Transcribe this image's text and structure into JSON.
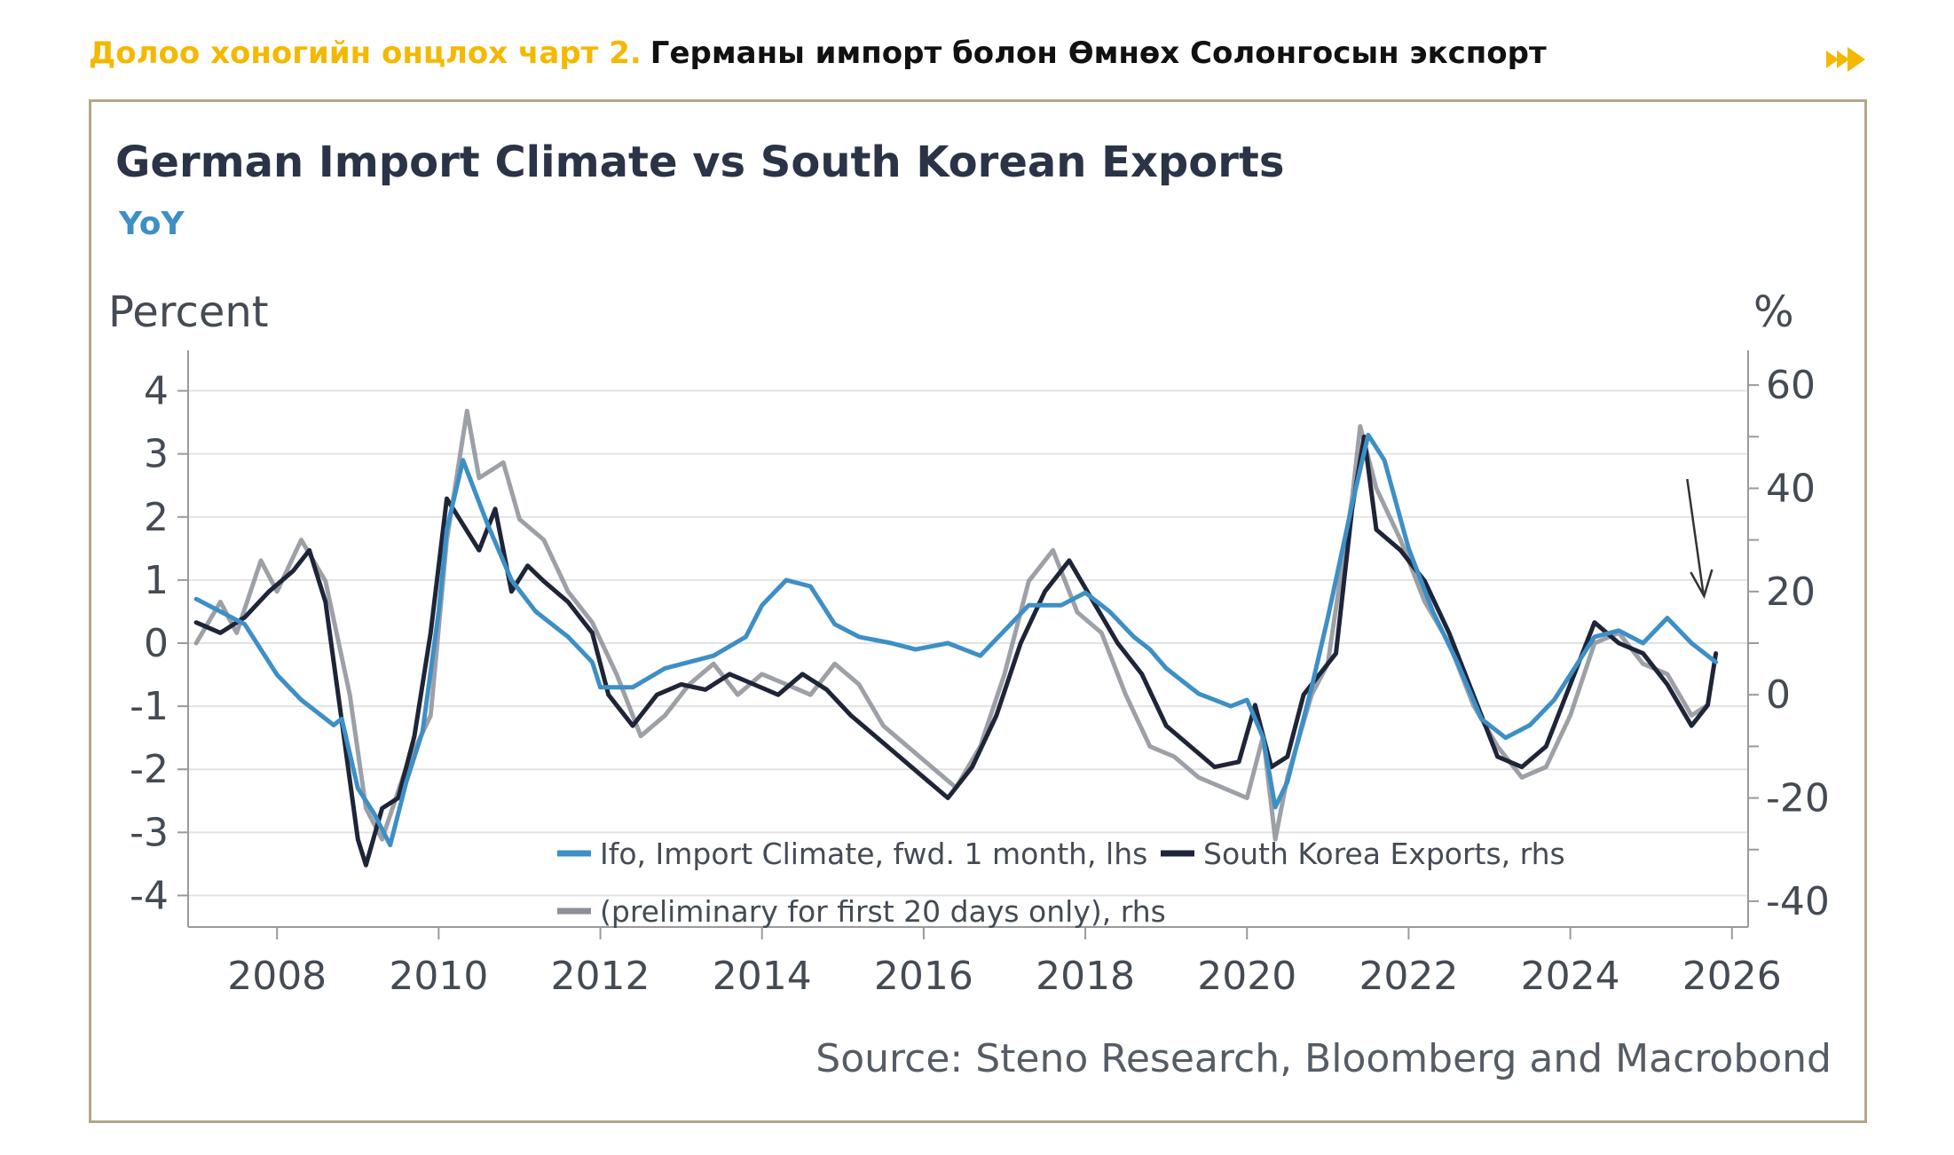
{
  "header": {
    "label": "Долоо хоногийн онцлох чарт 2.",
    "title": "Германы импорт болон Өмнөх Солонгосын экспорт"
  },
  "colors": {
    "header_label": "#f5b800",
    "ifo": "#3d8fc6",
    "korea": "#1e2538",
    "preliminary": "#8c8f97",
    "frame": "#b3a78a"
  },
  "chart_data": {
    "type": "line",
    "title": "German Import Climate vs South Korean Exports",
    "subtitle": "YoY",
    "ylabel_left": "Percent",
    "ylabel_right": "%",
    "ylim_left": [
      -4.5,
      4.5
    ],
    "ylim_right": [
      -45,
      65
    ],
    "xlim": [
      2006.9,
      2026.2
    ],
    "yticks_left": [
      4,
      3,
      2,
      1,
      0,
      -1,
      -2,
      -3,
      -4
    ],
    "yticks_left_labels": [
      "4",
      "3",
      "2",
      "1",
      "0",
      "-1",
      "-2",
      "-3",
      "-4"
    ],
    "yticks_right": [
      60,
      40,
      20,
      0,
      -20,
      -40
    ],
    "yticks_right_labels": [
      "60",
      "40",
      "20",
      "0",
      "-20",
      "-40"
    ],
    "xticks": [
      2008,
      2010,
      2012,
      2014,
      2016,
      2018,
      2020,
      2022,
      2024,
      2026
    ],
    "xticks_labels": [
      "2008",
      "2010",
      "2012",
      "2014",
      "2016",
      "2018",
      "2020",
      "2022",
      "2024",
      "2026"
    ],
    "source": "Source: Steno Research, Bloomberg and Macrobond",
    "legend": [
      "Ifo, Import Climate, fwd. 1 month, lhs",
      "South Korea Exports, rhs",
      "(preliminary for first 20 days only), rhs"
    ],
    "series": [
      {
        "name": "Ifo, Import Climate, fwd. 1 month, lhs",
        "axis": "left",
        "x": [
          2007.0,
          2007.3,
          2007.6,
          2008.0,
          2008.3,
          2008.7,
          2008.8,
          2009.0,
          2009.2,
          2009.4,
          2009.6,
          2009.8,
          2010.0,
          2010.1,
          2010.3,
          2010.6,
          2010.9,
          2011.2,
          2011.6,
          2011.9,
          2012.0,
          2012.4,
          2012.8,
          2013.1,
          2013.4,
          2013.8,
          2014.0,
          2014.3,
          2014.6,
          2014.9,
          2015.2,
          2015.6,
          2015.9,
          2016.3,
          2016.7,
          2017.0,
          2017.3,
          2017.7,
          2018.0,
          2018.3,
          2018.6,
          2018.8,
          2019.0,
          2019.4,
          2019.8,
          2020.0,
          2020.2,
          2020.35,
          2020.5,
          2020.8,
          2021.0,
          2021.3,
          2021.5,
          2021.7,
          2022.0,
          2022.3,
          2022.6,
          2022.9,
          2023.2,
          2023.5,
          2023.8,
          2024.0,
          2024.3,
          2024.6,
          2024.9,
          2025.2,
          2025.5,
          2025.8
        ],
        "values": [
          0.7,
          0.5,
          0.3,
          -0.5,
          -0.9,
          -1.3,
          -1.2,
          -2.3,
          -2.7,
          -3.2,
          -2.2,
          -1.4,
          0.5,
          1.8,
          2.9,
          1.9,
          1.0,
          0.5,
          0.1,
          -0.3,
          -0.7,
          -0.7,
          -0.4,
          -0.3,
          -0.2,
          0.1,
          0.6,
          1.0,
          0.9,
          0.3,
          0.1,
          0.0,
          -0.1,
          0.0,
          -0.2,
          0.2,
          0.6,
          0.6,
          0.8,
          0.5,
          0.1,
          -0.1,
          -0.4,
          -0.8,
          -1.0,
          -0.9,
          -1.5,
          -2.6,
          -2.2,
          -0.7,
          0.4,
          2.2,
          3.3,
          2.9,
          1.5,
          0.5,
          -0.3,
          -1.2,
          -1.5,
          -1.3,
          -0.9,
          -0.5,
          0.1,
          0.2,
          0.0,
          0.4,
          0.0,
          -0.3
        ]
      },
      {
        "name": "South Korea Exports, rhs",
        "axis": "right",
        "x": [
          2007.0,
          2007.3,
          2007.6,
          2007.9,
          2008.2,
          2008.4,
          2008.6,
          2008.8,
          2009.0,
          2009.1,
          2009.3,
          2009.5,
          2009.7,
          2009.9,
          2010.1,
          2010.3,
          2010.5,
          2010.7,
          2010.9,
          2011.1,
          2011.3,
          2011.6,
          2011.9,
          2012.1,
          2012.4,
          2012.7,
          2013.0,
          2013.3,
          2013.6,
          2013.9,
          2014.2,
          2014.5,
          2014.8,
          2015.1,
          2015.4,
          2015.7,
          2016.0,
          2016.3,
          2016.6,
          2016.9,
          2017.2,
          2017.5,
          2017.8,
          2018.1,
          2018.4,
          2018.7,
          2019.0,
          2019.3,
          2019.6,
          2019.9,
          2020.1,
          2020.3,
          2020.5,
          2020.7,
          2020.9,
          2021.1,
          2021.3,
          2021.45,
          2021.6,
          2021.9,
          2022.2,
          2022.5,
          2022.8,
          2023.1,
          2023.4,
          2023.7,
          2024.0,
          2024.3,
          2024.6,
          2024.9,
          2025.2,
          2025.5,
          2025.7,
          2025.8
        ],
        "values": [
          14,
          12,
          15,
          20,
          24,
          28,
          18,
          -5,
          -28,
          -33,
          -22,
          -20,
          -8,
          12,
          38,
          33,
          28,
          36,
          20,
          25,
          22,
          18,
          12,
          0,
          -6,
          0,
          2,
          1,
          4,
          2,
          0,
          4,
          1,
          -4,
          -8,
          -12,
          -16,
          -20,
          -14,
          -4,
          10,
          20,
          26,
          18,
          10,
          4,
          -6,
          -10,
          -14,
          -13,
          -2,
          -14,
          -12,
          0,
          4,
          8,
          36,
          50,
          32,
          28,
          22,
          12,
          0,
          -12,
          -14,
          -10,
          2,
          14,
          10,
          8,
          2,
          -6,
          -2,
          8
        ]
      },
      {
        "name": "(preliminary for first 20 days only), rhs",
        "axis": "right",
        "x": [
          2007.0,
          2007.3,
          2007.5,
          2007.8,
          2008.0,
          2008.3,
          2008.6,
          2008.9,
          2009.1,
          2009.3,
          2009.6,
          2009.9,
          2010.1,
          2010.35,
          2010.5,
          2010.8,
          2011.0,
          2011.3,
          2011.6,
          2011.9,
          2012.2,
          2012.5,
          2012.8,
          2013.1,
          2013.4,
          2013.7,
          2014.0,
          2014.3,
          2014.6,
          2014.9,
          2015.2,
          2015.5,
          2015.8,
          2016.1,
          2016.4,
          2016.7,
          2017.0,
          2017.3,
          2017.6,
          2017.9,
          2018.2,
          2018.5,
          2018.8,
          2019.1,
          2019.4,
          2019.7,
          2020.0,
          2020.2,
          2020.35,
          2020.5,
          2020.8,
          2021.0,
          2021.3,
          2021.4,
          2021.6,
          2021.9,
          2022.2,
          2022.5,
          2022.8,
          2023.1,
          2023.4,
          2023.7,
          2024.0,
          2024.3,
          2024.6,
          2024.9,
          2025.2,
          2025.5,
          2025.7
        ],
        "values": [
          10,
          18,
          12,
          26,
          20,
          30,
          22,
          0,
          -22,
          -28,
          -14,
          -4,
          30,
          55,
          42,
          45,
          34,
          30,
          20,
          14,
          4,
          -8,
          -4,
          2,
          6,
          0,
          4,
          2,
          0,
          6,
          2,
          -6,
          -10,
          -14,
          -18,
          -10,
          4,
          22,
          28,
          16,
          12,
          0,
          -10,
          -12,
          -16,
          -18,
          -20,
          -8,
          -28,
          -16,
          0,
          6,
          38,
          52,
          40,
          30,
          18,
          10,
          -2,
          -10,
          -16,
          -14,
          -4,
          10,
          12,
          6,
          4,
          -4,
          -2
        ]
      }
    ]
  }
}
